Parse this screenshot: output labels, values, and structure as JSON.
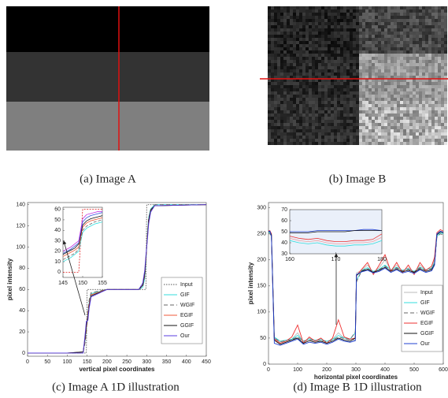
{
  "captions": [
    "(a) Image A",
    "(b) Image B",
    "(c) Image A 1D illustration",
    "(d) Image B 1D illustration"
  ],
  "chart_data": [
    {
      "type": "line",
      "xlabel": "vertical pixel coordinates",
      "ylabel": "pixel intensity",
      "xlim": [
        0,
        450
      ],
      "xticks": [
        0,
        50,
        100,
        150,
        200,
        250,
        300,
        350,
        400,
        450
      ],
      "ylim": [
        -3,
        142
      ],
      "yticks": [
        0,
        20,
        40,
        60,
        80,
        100,
        120,
        140
      ],
      "legend": "lower right",
      "x": [
        0,
        100,
        140,
        145,
        148,
        150,
        152,
        155,
        160,
        200,
        280,
        290,
        295,
        298,
        300,
        302,
        305,
        310,
        320,
        450
      ],
      "series": [
        {
          "name": "Input",
          "color": "#555555",
          "dash": "1.5,1.5",
          "values": [
            0,
            0,
            0,
            0,
            0,
            60,
            60,
            60,
            60,
            60,
            60,
            60,
            60,
            60,
            140,
            140,
            140,
            140,
            140,
            140
          ]
        },
        {
          "name": "GIF",
          "color": "#33dede",
          "values": [
            0,
            0,
            1,
            12,
            22,
            30,
            38,
            48,
            56,
            60,
            60,
            62,
            70,
            85,
            100,
            115,
            128,
            136,
            140,
            140
          ]
        },
        {
          "name": "WGIF",
          "color": "#666666",
          "dash": "5,3",
          "values": [
            0,
            0,
            0,
            10,
            20,
            30,
            40,
            50,
            57,
            60,
            60,
            63,
            72,
            87,
            100,
            113,
            127,
            135,
            140,
            140
          ]
        },
        {
          "name": "EGIF",
          "color": "#ef5a3a",
          "values": [
            0,
            0,
            1,
            14,
            24,
            30,
            36,
            46,
            55,
            60,
            60,
            64,
            74,
            88,
            100,
            112,
            126,
            134,
            139,
            140
          ]
        },
        {
          "name": "GGIF",
          "color": "#111111",
          "values": [
            0,
            0,
            1,
            15,
            26,
            30,
            34,
            44,
            54,
            60,
            60,
            64,
            75,
            90,
            100,
            110,
            125,
            135,
            139,
            140
          ]
        },
        {
          "name": "Our",
          "color": "#5a3ee0",
          "values": [
            0,
            0,
            0,
            18,
            30,
            30,
            31,
            42,
            53,
            60,
            60,
            66,
            78,
            92,
            100,
            108,
            122,
            133,
            139,
            140
          ]
        }
      ]
    },
    {
      "type": "line",
      "xlim": [
        145,
        155
      ],
      "xticks": [
        145,
        150,
        155
      ],
      "ylim": [
        -5,
        62
      ],
      "yticks": [
        0,
        10,
        20,
        30,
        40,
        50,
        60
      ],
      "x": [
        145,
        146,
        147,
        148,
        149,
        150,
        151,
        152,
        153,
        154,
        155
      ],
      "series": [
        {
          "color": "#e02020",
          "dash": "2,1.5",
          "values": [
            0,
            0,
            0,
            0,
            0,
            60,
            60,
            60,
            60,
            60,
            60
          ]
        },
        {
          "color": "#33dede",
          "values": [
            10,
            12,
            14,
            17,
            20,
            38,
            42,
            44,
            46,
            47,
            48
          ]
        },
        {
          "color": "#666666",
          "dash": "4,2",
          "values": [
            12,
            14,
            16,
            18,
            22,
            40,
            44,
            46,
            48,
            49,
            50
          ]
        },
        {
          "color": "#ef5a3a",
          "values": [
            15,
            17,
            19,
            21,
            24,
            43,
            47,
            49,
            50,
            51,
            52
          ]
        },
        {
          "color": "#111111",
          "values": [
            17,
            19,
            21,
            23,
            27,
            45,
            49,
            51,
            52,
            53,
            54
          ]
        },
        {
          "color": "#3050e0",
          "values": [
            18,
            20,
            22,
            25,
            28,
            48,
            52,
            54,
            55,
            56,
            57
          ]
        },
        {
          "color": "#c030e0",
          "values": [
            20,
            22,
            24,
            27,
            30,
            51,
            55,
            56,
            57,
            58,
            58
          ]
        }
      ]
    },
    {
      "type": "line",
      "xlabel": "horizontal pixel coordinates",
      "ylabel": "pixel intensity",
      "xlim": [
        0,
        600
      ],
      "xticks": [
        0,
        100,
        200,
        300,
        400,
        500,
        600
      ],
      "ylim": [
        0,
        310
      ],
      "yticks": [
        0,
        50,
        100,
        150,
        200,
        250,
        300
      ],
      "legend": "lower right",
      "x": [
        0,
        5,
        10,
        20,
        40,
        60,
        80,
        100,
        120,
        140,
        160,
        180,
        200,
        220,
        240,
        260,
        280,
        298,
        302,
        320,
        340,
        360,
        380,
        400,
        420,
        440,
        460,
        480,
        500,
        520,
        540,
        560,
        570,
        578,
        590,
        600
      ],
      "series": [
        {
          "name": "Input",
          "color": "#bbbbbb",
          "values": [
            255,
            255,
            250,
            50,
            42,
            45,
            48,
            60,
            42,
            50,
            45,
            48,
            42,
            48,
            60,
            50,
            48,
            45,
            175,
            180,
            190,
            175,
            185,
            200,
            180,
            190,
            178,
            185,
            175,
            190,
            180,
            185,
            200,
            250,
            255,
            252
          ]
        },
        {
          "name": "GIF",
          "color": "#33dede",
          "values": [
            252,
            252,
            248,
            52,
            44,
            46,
            48,
            55,
            44,
            48,
            46,
            47,
            44,
            47,
            55,
            50,
            48,
            60,
            160,
            180,
            185,
            178,
            182,
            190,
            181,
            186,
            180,
            183,
            178,
            186,
            181,
            184,
            195,
            245,
            252,
            250
          ]
        },
        {
          "name": "WGIF",
          "color": "#666666",
          "dash": "5,3",
          "values": [
            250,
            250,
            246,
            50,
            43,
            45,
            47,
            52,
            44,
            47,
            45,
            46,
            43,
            46,
            52,
            49,
            47,
            62,
            158,
            179,
            183,
            177,
            181,
            188,
            180,
            185,
            179,
            182,
            177,
            185,
            180,
            183,
            193,
            243,
            250,
            248
          ]
        },
        {
          "name": "EGIF",
          "color": "#ee3030",
          "values": [
            256,
            256,
            250,
            48,
            40,
            44,
            52,
            75,
            40,
            52,
            44,
            50,
            40,
            50,
            85,
            52,
            48,
            50,
            170,
            182,
            195,
            172,
            190,
            210,
            178,
            195,
            175,
            190,
            172,
            195,
            180,
            188,
            205,
            252,
            258,
            255
          ]
        },
        {
          "name": "GGIF",
          "color": "#111111",
          "values": [
            254,
            254,
            248,
            46,
            38,
            42,
            46,
            50,
            40,
            45,
            42,
            44,
            40,
            44,
            50,
            46,
            44,
            50,
            170,
            178,
            182,
            176,
            180,
            186,
            178,
            183,
            177,
            180,
            176,
            183,
            178,
            181,
            192,
            248,
            254,
            252
          ]
        },
        {
          "name": "Our",
          "color": "#2040d0",
          "values": [
            255,
            255,
            245,
            40,
            36,
            40,
            44,
            48,
            38,
            42,
            40,
            42,
            38,
            42,
            48,
            44,
            42,
            45,
            172,
            177,
            180,
            175,
            178,
            184,
            176,
            181,
            175,
            178,
            174,
            181,
            176,
            179,
            190,
            250,
            255,
            253
          ]
        }
      ]
    },
    {
      "type": "line",
      "xlim": [
        160,
        180
      ],
      "xticks": [
        160,
        170,
        180
      ],
      "ylim": [
        30,
        70
      ],
      "yticks": [
        30,
        40,
        50,
        60,
        70
      ],
      "x": [
        160,
        162,
        164,
        166,
        168,
        170,
        172,
        174,
        176,
        178,
        180
      ],
      "series": [
        {
          "color": "#2040d0",
          "values": [
            50,
            50,
            50,
            51,
            51,
            51,
            51,
            51,
            52,
            52,
            51
          ]
        },
        {
          "color": "#111111",
          "values": [
            49,
            49,
            49,
            50,
            50,
            50,
            50,
            51,
            51,
            51,
            51
          ]
        },
        {
          "color": "#ee3030",
          "values": [
            46,
            44,
            43,
            44,
            42,
            41,
            41,
            42,
            42,
            43,
            48
          ]
        },
        {
          "color": "#f0a0a0",
          "values": [
            44,
            42,
            41,
            42,
            40,
            39,
            39,
            40,
            40,
            41,
            45
          ]
        },
        {
          "color": "#33dede",
          "values": [
            42,
            40,
            39,
            40,
            38,
            37,
            37,
            38,
            38,
            39,
            42
          ]
        }
      ]
    }
  ]
}
